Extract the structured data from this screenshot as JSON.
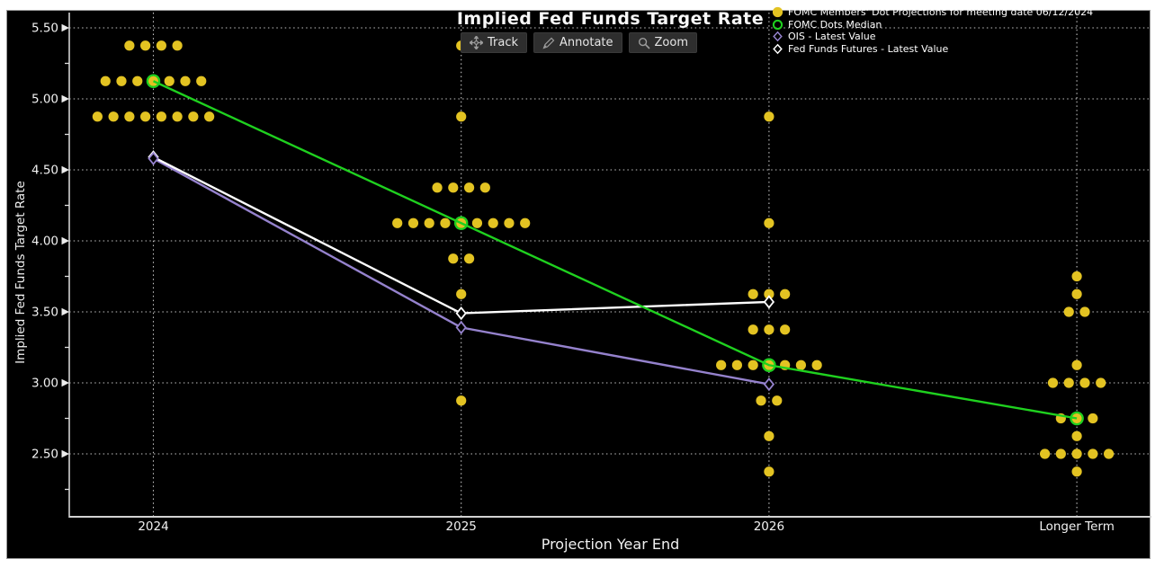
{
  "chart": {
    "title": "Implied Fed Funds Target Rate",
    "xlabel": "Projection Year End",
    "ylabel": "Implied Fed Funds Target Rate"
  },
  "toolbar": {
    "buttons": [
      {
        "id": "track",
        "icon": "track-crosshair-icon",
        "label": "Track"
      },
      {
        "id": "annotate",
        "icon": "annotate-pencil-icon",
        "label": "Annotate"
      },
      {
        "id": "zoom",
        "icon": "zoom-magnifier-icon",
        "label": "Zoom"
      }
    ]
  },
  "legend": {
    "items": [
      {
        "marker": "filled-circle",
        "color": "#e3c322",
        "label": "FOMC Members' Dot Projections for meeting date 06/12/2024"
      },
      {
        "marker": "open-circle",
        "color": "#1fd11f",
        "label": "FOMC Dots Median"
      },
      {
        "marker": "open-diamond",
        "color": "#9582cd",
        "label": "OIS - Latest Value"
      },
      {
        "marker": "open-diamond",
        "color": "#ffffff",
        "label": "Fed Funds Futures - Latest Value"
      }
    ]
  },
  "chart_data": {
    "type": "scatter",
    "title": "Implied Fed Funds Target Rate",
    "xlabel": "Projection Year End",
    "ylabel": "Implied Fed Funds Target Rate",
    "categories": [
      "2024",
      "2025",
      "2026",
      "Longer Term"
    ],
    "y_ticks": [
      {
        "label": "5.50",
        "value": 5.5
      },
      {
        "label": "5.00",
        "value": 5.0
      },
      {
        "label": "4.50",
        "value": 4.5
      },
      {
        "label": "4.00",
        "value": 4.0
      },
      {
        "label": "3.50",
        "value": 3.5
      },
      {
        "label": "3.00",
        "value": 3.0
      },
      {
        "label": "2.50",
        "value": 2.5
      }
    ],
    "y_minor_ticks": [
      5.25,
      4.75,
      4.25,
      3.75,
      3.25,
      2.75,
      2.25
    ],
    "ylim": [
      2.06,
      5.6
    ],
    "grid": "dotted",
    "legend_position": "top-right",
    "dot_color": "#e3c322",
    "dots": [
      {
        "category": "2024",
        "rows": [
          {
            "value": 5.375,
            "count": 4
          },
          {
            "value": 5.125,
            "count": 7
          },
          {
            "value": 4.875,
            "count": 8
          }
        ]
      },
      {
        "category": "2025",
        "rows": [
          {
            "value": 5.375,
            "count": 1
          },
          {
            "value": 4.875,
            "count": 1
          },
          {
            "value": 4.375,
            "count": 4
          },
          {
            "value": 4.125,
            "count": 9
          },
          {
            "value": 3.875,
            "count": 2
          },
          {
            "value": 3.625,
            "count": 1
          },
          {
            "value": 2.875,
            "count": 1
          }
        ]
      },
      {
        "category": "2026",
        "rows": [
          {
            "value": 4.875,
            "count": 1
          },
          {
            "value": 4.125,
            "count": 1
          },
          {
            "value": 3.625,
            "count": 3
          },
          {
            "value": 3.375,
            "count": 3
          },
          {
            "value": 3.125,
            "count": 7
          },
          {
            "value": 2.875,
            "count": 2
          },
          {
            "value": 2.625,
            "count": 1
          },
          {
            "value": 2.375,
            "count": 1
          }
        ]
      },
      {
        "category": "Longer Term",
        "rows": [
          {
            "value": 3.75,
            "count": 1
          },
          {
            "value": 3.625,
            "count": 1
          },
          {
            "value": 3.5,
            "count": 2
          },
          {
            "value": 3.125,
            "count": 1
          },
          {
            "value": 3.0,
            "count": 4
          },
          {
            "value": 2.75,
            "count": 3
          },
          {
            "value": 2.625,
            "count": 1
          },
          {
            "value": 2.5,
            "count": 5
          },
          {
            "value": 2.375,
            "count": 1
          }
        ]
      }
    ],
    "series": [
      {
        "name": "FOMC Dots Median",
        "marker": "open-circle",
        "color": "#1fd11f",
        "categories": [
          "2024",
          "2025",
          "2026",
          "Longer Term"
        ],
        "values": [
          5.125,
          4.125,
          3.125,
          2.75
        ]
      },
      {
        "name": "OIS - Latest Value",
        "marker": "open-diamond",
        "color": "#9582cd",
        "categories": [
          "2024",
          "2025",
          "2026"
        ],
        "values": [
          4.58,
          3.39,
          2.99
        ]
      },
      {
        "name": "Fed Funds Futures - Latest Value",
        "marker": "open-diamond",
        "color": "#ffffff",
        "categories": [
          "2024",
          "2025",
          "2026"
        ],
        "values": [
          4.59,
          3.49,
          3.57
        ]
      }
    ]
  }
}
